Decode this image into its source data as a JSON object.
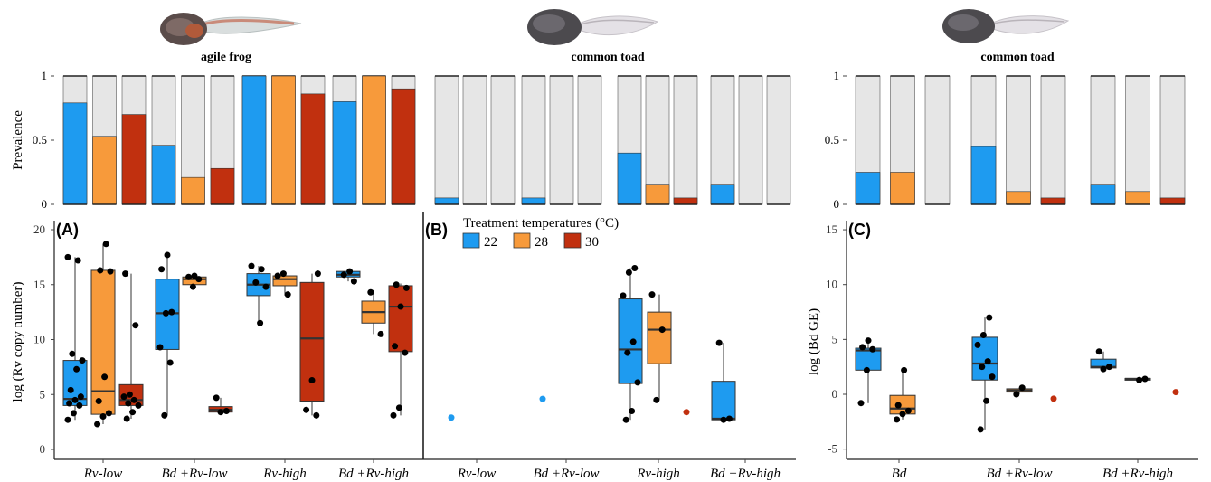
{
  "colors": {
    "t22": "#1E9BF0",
    "t28": "#F79A3B",
    "t30": "#C1300F",
    "neg": "#E6E6E6",
    "edge": "#333333"
  },
  "species": {
    "agile": "agile frog",
    "toad1": "common toad",
    "toad2": "common toad"
  },
  "labels": {
    "prevalence": "Prevalence",
    "ylabel_rv": "log (Rv copy number)",
    "ylabel_bd": "log (Bd GE)",
    "panel_a": "(A)",
    "panel_b": "(B)",
    "panel_c": "(C)",
    "legend_title": "Treatment temperatures (°C)",
    "legend_items": [
      "22",
      "28",
      "30"
    ]
  },
  "chart_data": [
    {
      "type": "bar",
      "panel": "A-prevalence",
      "species": "agile frog",
      "ylabel": "Prevalence",
      "ylim": [
        0,
        1
      ],
      "yticks": [
        "0",
        "0.5",
        "1"
      ],
      "groups": [
        "Rv-low",
        "Bd +Rv-low",
        "Rv-high",
        "Bd +Rv-high"
      ],
      "series": [
        {
          "name": "22",
          "values": [
            0.79,
            0.46,
            1.0,
            0.8
          ]
        },
        {
          "name": "28",
          "values": [
            0.53,
            0.21,
            1.0,
            1.0
          ]
        },
        {
          "name": "30",
          "values": [
            0.7,
            0.28,
            0.86,
            0.9
          ]
        }
      ]
    },
    {
      "type": "bar",
      "panel": "B-prevalence",
      "species": "common toad",
      "ylim": [
        0,
        1
      ],
      "groups": [
        "Rv-low",
        "Bd +Rv-low",
        "Rv-high",
        "Bd +Rv-high"
      ],
      "series": [
        {
          "name": "22",
          "values": [
            0.05,
            0.05,
            0.4,
            0.15
          ]
        },
        {
          "name": "28",
          "values": [
            0.0,
            0.0,
            0.15,
            0.0
          ]
        },
        {
          "name": "30",
          "values": [
            0.0,
            0.0,
            0.05,
            0.0
          ]
        }
      ]
    },
    {
      "type": "bar",
      "panel": "C-prevalence",
      "species": "common toad",
      "ylabel": "Prevalence",
      "ylim": [
        0,
        1
      ],
      "yticks": [
        "0",
        "0.5",
        "1"
      ],
      "groups": [
        "Bd",
        "Bd +Rv-low",
        "Bd +Rv-high"
      ],
      "series": [
        {
          "name": "22",
          "values": [
            0.25,
            0.45,
            0.15
          ]
        },
        {
          "name": "28",
          "values": [
            0.25,
            0.1,
            0.1
          ]
        },
        {
          "name": "30",
          "values": [
            0.0,
            0.05,
            0.05
          ]
        }
      ]
    },
    {
      "type": "box",
      "panel": "A",
      "ylabel": "log (Rv copy number)",
      "ylim": [
        -1,
        20.5
      ],
      "yticks": [
        "0",
        "5",
        "10",
        "15",
        "20"
      ],
      "groups": [
        "Rv-low",
        "Bd +Rv-low",
        "Rv-high",
        "Bd +Rv-high"
      ],
      "boxes": [
        {
          "t": "22",
          "q1": 4.0,
          "med": 4.6,
          "q3": 8.1,
          "min": 2.7,
          "max": 17.5,
          "pts": [
            2.7,
            3.3,
            4.0,
            4.2,
            4.5,
            4.8,
            5.4,
            7.3,
            8.1,
            8.7,
            17.2,
            17.5
          ]
        },
        {
          "t": "28",
          "q1": 3.2,
          "med": 5.3,
          "q3": 16.3,
          "min": 2.3,
          "max": 18.7,
          "pts": [
            2.3,
            3.0,
            3.3,
            4.4,
            6.6,
            16.2,
            16.3,
            18.7
          ]
        },
        {
          "t": "30",
          "q1": 4.0,
          "med": 4.5,
          "q3": 5.9,
          "min": 2.8,
          "max": 16.0,
          "pts": [
            2.8,
            3.4,
            4.0,
            4.2,
            4.5,
            4.8,
            5.0,
            11.3,
            16.0
          ]
        },
        {
          "t": "22",
          "q1": 9.1,
          "med": 12.4,
          "q3": 15.5,
          "min": 3.1,
          "max": 17.7,
          "pts": [
            3.1,
            7.9,
            9.3,
            12.4,
            12.5,
            16.4,
            17.7
          ]
        },
        {
          "t": "28",
          "q1": 15.0,
          "med": 15.5,
          "q3": 15.7,
          "min": 14.8,
          "max": 15.8,
          "pts": [
            14.8,
            15.5,
            15.7,
            15.8
          ]
        },
        {
          "t": "30",
          "q1": 3.4,
          "med": 3.6,
          "q3": 3.9,
          "min": 3.4,
          "max": 4.7,
          "pts": [
            3.4,
            3.5,
            4.7
          ]
        },
        {
          "t": "22",
          "q1": 14.0,
          "med": 15.0,
          "q3": 16.0,
          "min": 11.5,
          "max": 16.7,
          "pts": [
            11.5,
            14.8,
            15.2,
            16.4,
            16.7
          ]
        },
        {
          "t": "28",
          "q1": 14.9,
          "med": 15.5,
          "q3": 15.8,
          "min": 14.0,
          "max": 16.0,
          "pts": [
            14.1,
            15.8,
            16.0
          ]
        },
        {
          "t": "30",
          "q1": 4.4,
          "med": 10.1,
          "q3": 15.2,
          "min": 3.1,
          "max": 16.0,
          "pts": [
            3.1,
            3.6,
            6.3,
            16.0
          ]
        },
        {
          "t": "22",
          "q1": 15.7,
          "med": 15.9,
          "q3": 16.2,
          "min": 15.3,
          "max": 16.3,
          "pts": [
            15.3,
            15.9,
            16.2
          ]
        },
        {
          "t": "28",
          "q1": 11.5,
          "med": 12.5,
          "q3": 13.5,
          "min": 10.5,
          "max": 14.5,
          "pts": [
            10.5,
            14.3
          ]
        },
        {
          "t": "30",
          "q1": 8.9,
          "med": 13.0,
          "q3": 14.9,
          "min": 3.1,
          "max": 15.1,
          "pts": [
            3.1,
            3.8,
            8.8,
            9.4,
            13.0,
            14.7,
            15.0
          ]
        }
      ]
    },
    {
      "type": "box",
      "panel": "B",
      "ylim": [
        -1,
        20.5
      ],
      "groups": [
        "Rv-low",
        "Bd +Rv-low",
        "Rv-high",
        "Bd +Rv-high"
      ],
      "boxes": [
        {
          "t": "22",
          "single": 2.9
        },
        {
          "t": "22",
          "single": 4.6
        },
        {
          "t": "22",
          "q1": 6.0,
          "med": 9.1,
          "q3": 13.7,
          "min": 2.7,
          "max": 16.5,
          "pts": [
            2.7,
            3.5,
            6.1,
            8.8,
            9.8,
            14.0,
            16.1,
            16.5
          ]
        },
        {
          "t": "28",
          "q1": 7.8,
          "med": 10.9,
          "q3": 12.5,
          "min": 4.5,
          "max": 14.1,
          "pts": [
            4.5,
            10.9,
            14.1
          ]
        },
        {
          "t": "30",
          "single": 3.4
        },
        {
          "t": "22",
          "q1": 2.7,
          "med": 2.8,
          "q3": 6.2,
          "min": 2.7,
          "max": 9.7,
          "pts": [
            2.7,
            2.8,
            9.7
          ]
        }
      ]
    },
    {
      "type": "box",
      "panel": "C",
      "ylabel": "log (Bd GE)",
      "ylim": [
        -6,
        16.5
      ],
      "yticks": [
        "-5",
        "0",
        "5",
        "10",
        "15"
      ],
      "groups": [
        "Bd",
        "Bd +Rv-low",
        "Bd +Rv-high"
      ],
      "boxes": [
        {
          "t": "22",
          "q1": 2.2,
          "med": 4.0,
          "q3": 4.2,
          "min": -0.8,
          "max": 5.0,
          "pts": [
            -0.8,
            2.2,
            4.1,
            4.3,
            4.9
          ]
        },
        {
          "t": "28",
          "q1": -1.8,
          "med": -1.3,
          "q3": -0.1,
          "min": -2.3,
          "max": 2.2,
          "pts": [
            -2.3,
            -1.8,
            -1.5,
            -1.0,
            2.2
          ]
        },
        {
          "t": "22",
          "q1": 1.3,
          "med": 2.8,
          "q3": 5.2,
          "min": -3.2,
          "max": 7.0,
          "pts": [
            -3.2,
            -0.6,
            1.6,
            2.5,
            3.0,
            4.5,
            5.4,
            7.0
          ]
        },
        {
          "t": "28",
          "q1": 0.2,
          "med": 0.35,
          "q3": 0.5,
          "min": 0.0,
          "max": 0.6,
          "pts": [
            0.0,
            0.6
          ]
        },
        {
          "t": "30",
          "single": -0.4
        },
        {
          "t": "22",
          "q1": 2.4,
          "med": 2.5,
          "q3": 3.2,
          "min": 2.3,
          "max": 3.9,
          "pts": [
            2.3,
            2.5,
            3.9
          ]
        },
        {
          "t": "28",
          "q1": 1.35,
          "med": 1.4,
          "q3": 1.45,
          "min": 1.3,
          "max": 1.5,
          "pts": [
            1.3,
            1.4
          ]
        },
        {
          "t": "30",
          "single": 0.2
        }
      ]
    }
  ]
}
